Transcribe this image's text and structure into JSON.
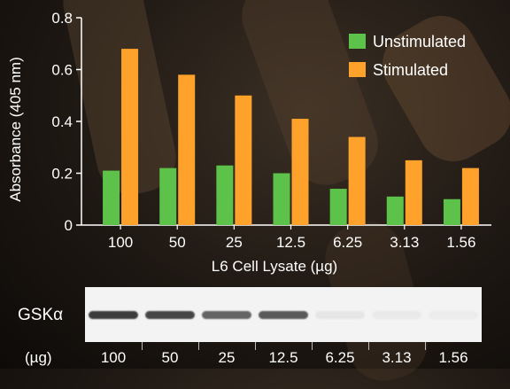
{
  "chart_data": {
    "type": "bar",
    "xlabel": "L6 Cell Lysate (µg)",
    "ylabel": "Absorbance (405 nm)",
    "ylim": [
      0,
      0.8
    ],
    "yticks": [
      "0",
      "0.2",
      "0.4",
      "0.6",
      "0.8"
    ],
    "categories": [
      "100",
      "50",
      "25",
      "12.5",
      "6.25",
      "3.13",
      "1.56"
    ],
    "series": [
      {
        "name": "Unstimulated",
        "color": "#5cc24a",
        "values": [
          0.21,
          0.22,
          0.23,
          0.2,
          0.14,
          0.11,
          0.1
        ]
      },
      {
        "name": "Stimulated",
        "color": "#ffa22b",
        "values": [
          0.68,
          0.58,
          0.5,
          0.41,
          0.34,
          0.25,
          0.22
        ]
      }
    ],
    "legend": "top-right"
  },
  "blot": {
    "label": "GSKα",
    "unit_label": "(µg)",
    "lanes": [
      "100",
      "50",
      "25",
      "12.5",
      "6.25",
      "3.13",
      "1.56"
    ],
    "band_intensity": [
      0.9,
      0.85,
      0.7,
      0.75,
      0.05,
      0.03,
      0.02
    ]
  }
}
